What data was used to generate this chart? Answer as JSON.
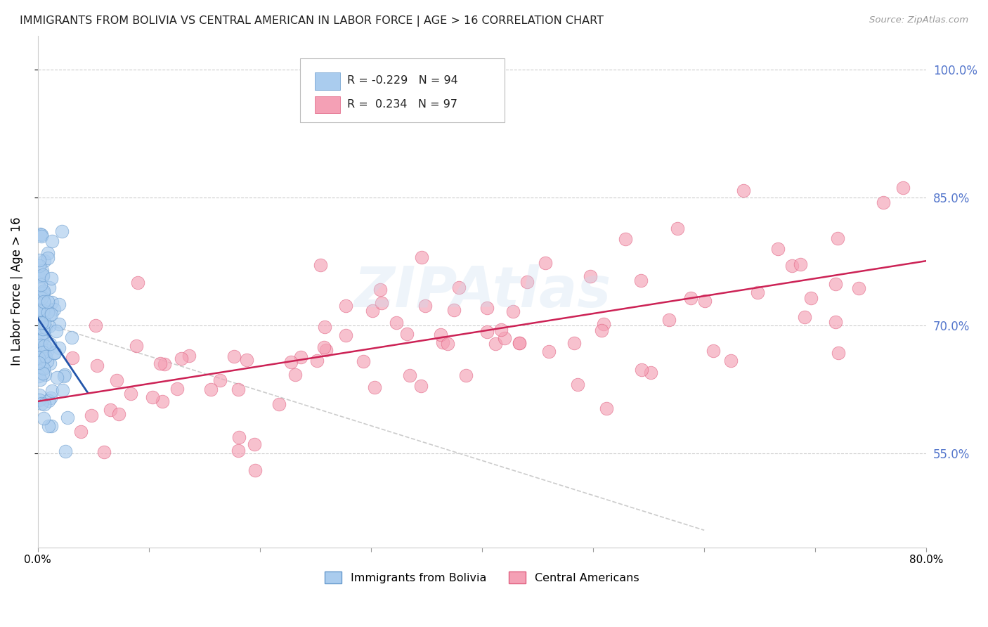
{
  "title": "IMMIGRANTS FROM BOLIVIA VS CENTRAL AMERICAN IN LABOR FORCE | AGE > 16 CORRELATION CHART",
  "source": "Source: ZipAtlas.com",
  "ylabel": "In Labor Force | Age > 16",
  "watermark": "ZIPAtlas",
  "xlim": [
    0.0,
    0.8
  ],
  "ylim": [
    0.44,
    1.04
  ],
  "yticks": [
    0.55,
    0.7,
    0.85,
    1.0
  ],
  "ytick_labels": [
    "55.0%",
    "70.0%",
    "85.0%",
    "100.0%"
  ],
  "xticks": [
    0.0,
    0.1,
    0.2,
    0.3,
    0.4,
    0.5,
    0.6,
    0.7,
    0.8
  ],
  "bolivia_color": "#aaccee",
  "central_color": "#f4a0b5",
  "bolivia_edge": "#6699cc",
  "central_edge": "#e06080",
  "trend_bolivia_color": "#2255aa",
  "trend_central_color": "#cc2255",
  "trend_dashed_color": "#cccccc",
  "legend_r_bolivia": "R = -0.229",
  "legend_n_bolivia": "N = 94",
  "legend_r_central": "R =  0.234",
  "legend_n_central": "N = 97",
  "bolivia_label": "Immigrants from Bolivia",
  "central_label": "Central Americans"
}
